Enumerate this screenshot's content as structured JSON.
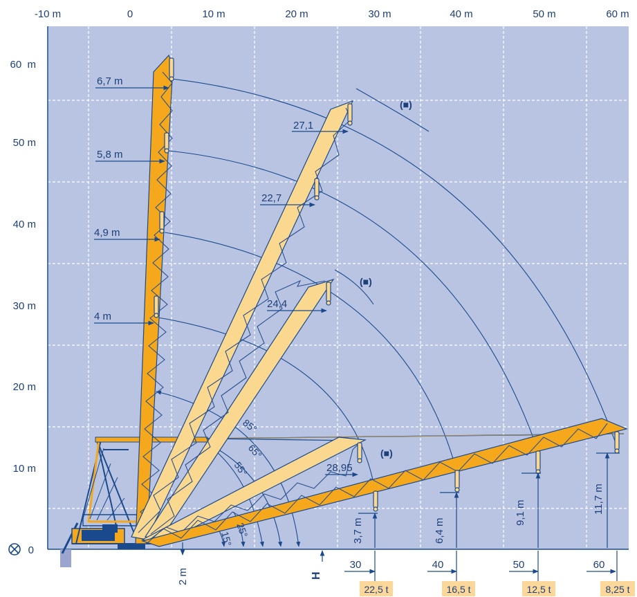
{
  "colors": {
    "background": "#b9c4e3",
    "grid": "#ffffff",
    "outline": "#1a4a8c",
    "boom_fill": "#f5a81c",
    "boom_fill_light": "#fbd890",
    "boom_lattice": "#2a4f8c",
    "load_badge": "#fbd89a",
    "text": "#1d3f7a"
  },
  "axes": {
    "x_ticks": [
      "-10 m",
      "0",
      "10 m",
      "20 m",
      "30 m",
      "40 m",
      "50 m",
      "60 m"
    ],
    "y_ticks": [
      "60  m",
      "50 m",
      "40 m",
      "30 m",
      "20 m",
      "10 m",
      "0"
    ]
  },
  "vertical_boom": {
    "radius_labels": [
      "6,7 m",
      "5,8 m",
      "4,9 m",
      "4 m"
    ]
  },
  "inclined_booms": {
    "radius_labels": [
      "27,1",
      "22,7",
      "24,4",
      "28,95"
    ],
    "bracket_labels": [
      "(■)",
      "(■)",
      "(■)"
    ]
  },
  "angles": [
    "85°",
    "65°",
    "55°",
    "25°",
    "15°"
  ],
  "hook_heights": [
    "3,7 m",
    "6,4 m",
    "9,1 m",
    "11,7 m"
  ],
  "ground": {
    "offset_label": "2 m",
    "height_symbol": "H"
  },
  "radius_marks": [
    "30",
    "40",
    "50",
    "60"
  ],
  "loads": [
    "22,5 t",
    "16,5 t",
    "12,5 t",
    "8,25 t"
  ]
}
